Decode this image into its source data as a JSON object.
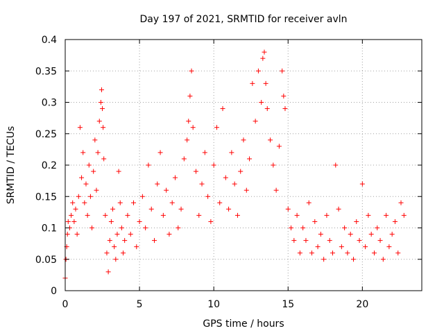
{
  "chart_data": {
    "type": "scatter",
    "title": "Day 197 of 2021, SRMTID for receiver avln",
    "xlabel": "GPS time / hours",
    "ylabel": "SRMTID / TECUs",
    "xlim": [
      0,
      24
    ],
    "ylim": [
      0,
      0.4
    ],
    "x_ticks": [
      0,
      5,
      10,
      15,
      20
    ],
    "x_tick_labels": [
      "0",
      "5",
      "10",
      "15",
      "20"
    ],
    "y_ticks": [
      0,
      0.05,
      0.1,
      0.15,
      0.2,
      0.25,
      0.3,
      0.35,
      0.4
    ],
    "y_tick_labels": [
      "0",
      "0.05",
      "0.1",
      "0.15",
      "0.2",
      "0.25",
      "0.3",
      "0.35",
      "0.4"
    ],
    "grid": true,
    "marker": "plus",
    "color": "#ff0000",
    "series": [
      {
        "x": [
          0.0,
          0.05,
          0.1,
          0.15,
          0.2,
          0.3,
          0.4,
          0.5,
          0.6,
          0.7,
          0.8,
          0.9,
          1.0,
          1.1,
          1.2,
          1.3,
          1.4,
          1.5,
          1.6,
          1.7,
          1.8,
          1.9,
          2.0,
          2.1,
          2.2,
          2.3,
          2.4,
          2.45,
          2.5,
          2.55,
          2.6,
          2.7,
          2.8,
          2.9,
          3.0,
          3.1,
          3.2,
          3.3,
          3.4,
          3.5,
          3.6,
          3.7,
          3.8,
          3.9,
          4.0,
          4.2,
          4.4,
          4.6,
          4.8,
          5.0,
          5.2,
          5.4,
          5.6,
          5.8,
          6.0,
          6.2,
          6.4,
          6.6,
          6.8,
          7.0,
          7.2,
          7.4,
          7.6,
          7.8,
          8.0,
          8.2,
          8.3,
          8.4,
          8.5,
          8.6,
          8.8,
          9.0,
          9.2,
          9.4,
          9.6,
          9.8,
          10.0,
          10.2,
          10.4,
          10.6,
          10.8,
          11.0,
          11.2,
          11.4,
          11.6,
          11.8,
          12.0,
          12.2,
          12.4,
          12.6,
          12.8,
          13.0,
          13.2,
          13.3,
          13.4,
          13.5,
          13.6,
          13.8,
          14.0,
          14.2,
          14.4,
          14.6,
          14.7,
          14.8,
          15.0,
          15.2,
          15.4,
          15.6,
          15.8,
          16.0,
          16.2,
          16.4,
          16.6,
          16.8,
          17.0,
          17.2,
          17.4,
          17.6,
          17.8,
          18.0,
          18.2,
          18.4,
          18.6,
          18.8,
          19.0,
          19.2,
          19.4,
          19.6,
          19.8,
          20.0,
          20.2,
          20.4,
          20.6,
          20.8,
          21.0,
          21.2,
          21.4,
          21.6,
          21.8,
          22.0,
          22.2,
          22.4,
          22.6,
          22.8
        ],
        "y": [
          0.02,
          0.05,
          0.07,
          0.09,
          0.11,
          0.1,
          0.12,
          0.14,
          0.11,
          0.13,
          0.09,
          0.15,
          0.26,
          0.18,
          0.22,
          0.14,
          0.17,
          0.12,
          0.2,
          0.15,
          0.1,
          0.19,
          0.24,
          0.16,
          0.22,
          0.27,
          0.3,
          0.32,
          0.29,
          0.26,
          0.21,
          0.12,
          0.06,
          0.03,
          0.08,
          0.11,
          0.13,
          0.07,
          0.05,
          0.09,
          0.19,
          0.14,
          0.1,
          0.06,
          0.08,
          0.12,
          0.09,
          0.14,
          0.07,
          0.11,
          0.15,
          0.1,
          0.2,
          0.13,
          0.08,
          0.17,
          0.22,
          0.12,
          0.16,
          0.09,
          0.14,
          0.18,
          0.1,
          0.13,
          0.21,
          0.24,
          0.27,
          0.31,
          0.35,
          0.26,
          0.19,
          0.12,
          0.17,
          0.22,
          0.15,
          0.11,
          0.2,
          0.26,
          0.14,
          0.29,
          0.18,
          0.13,
          0.22,
          0.17,
          0.12,
          0.19,
          0.24,
          0.16,
          0.21,
          0.33,
          0.27,
          0.35,
          0.3,
          0.37,
          0.38,
          0.33,
          0.29,
          0.24,
          0.2,
          0.16,
          0.23,
          0.35,
          0.31,
          0.29,
          0.13,
          0.1,
          0.08,
          0.12,
          0.06,
          0.1,
          0.08,
          0.14,
          0.06,
          0.11,
          0.07,
          0.09,
          0.05,
          0.12,
          0.08,
          0.06,
          0.2,
          0.13,
          0.07,
          0.1,
          0.06,
          0.09,
          0.05,
          0.11,
          0.08,
          0.17,
          0.07,
          0.12,
          0.09,
          0.06,
          0.1,
          0.08,
          0.05,
          0.12,
          0.07,
          0.09,
          0.11,
          0.06,
          0.14,
          0.12
        ]
      }
    ]
  }
}
